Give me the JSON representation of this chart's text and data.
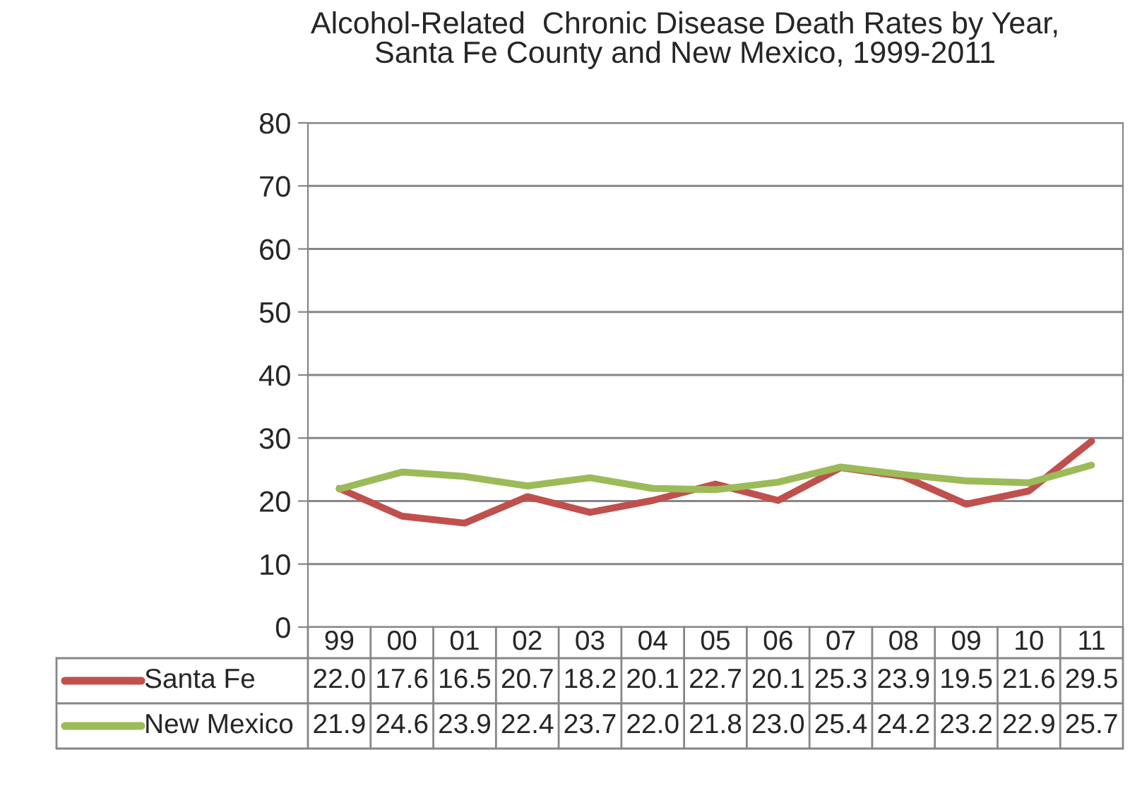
{
  "chart_data": {
    "type": "line",
    "title": "Alcohol-Related  Chronic Disease Death Rates by Year,\nSanta Fe County and New Mexico, 1999-2011",
    "categories": [
      "99",
      "00",
      "01",
      "02",
      "03",
      "04",
      "05",
      "06",
      "07",
      "08",
      "09",
      "10",
      "11"
    ],
    "series": [
      {
        "name": "Santa Fe",
        "color": "#c0504d",
        "values": [
          22.0,
          17.6,
          16.5,
          20.7,
          18.2,
          20.1,
          22.7,
          20.1,
          25.3,
          23.9,
          19.5,
          21.6,
          29.5
        ],
        "value_labels": [
          "22.0",
          "17.6",
          "16.5",
          "20.7",
          "18.2",
          "20.1",
          "22.7",
          "20.1",
          "25.3",
          "23.9",
          "19.5",
          "21.6",
          "29.5"
        ]
      },
      {
        "name": "New Mexico",
        "color": "#9bbb59",
        "values": [
          21.9,
          24.6,
          23.9,
          22.4,
          23.7,
          22.0,
          21.8,
          23.0,
          25.4,
          24.2,
          23.2,
          22.9,
          25.7
        ],
        "value_labels": [
          "21.9",
          "24.6",
          "23.9",
          "22.4",
          "23.7",
          "22.0",
          "21.8",
          "23.0",
          "25.4",
          "24.2",
          "23.2",
          "22.9",
          "25.7"
        ]
      }
    ],
    "ylim": [
      0,
      80
    ],
    "yticks": [
      0,
      10,
      20,
      30,
      40,
      50,
      60,
      70,
      80
    ],
    "grid": "y",
    "legend": "bottom left"
  }
}
